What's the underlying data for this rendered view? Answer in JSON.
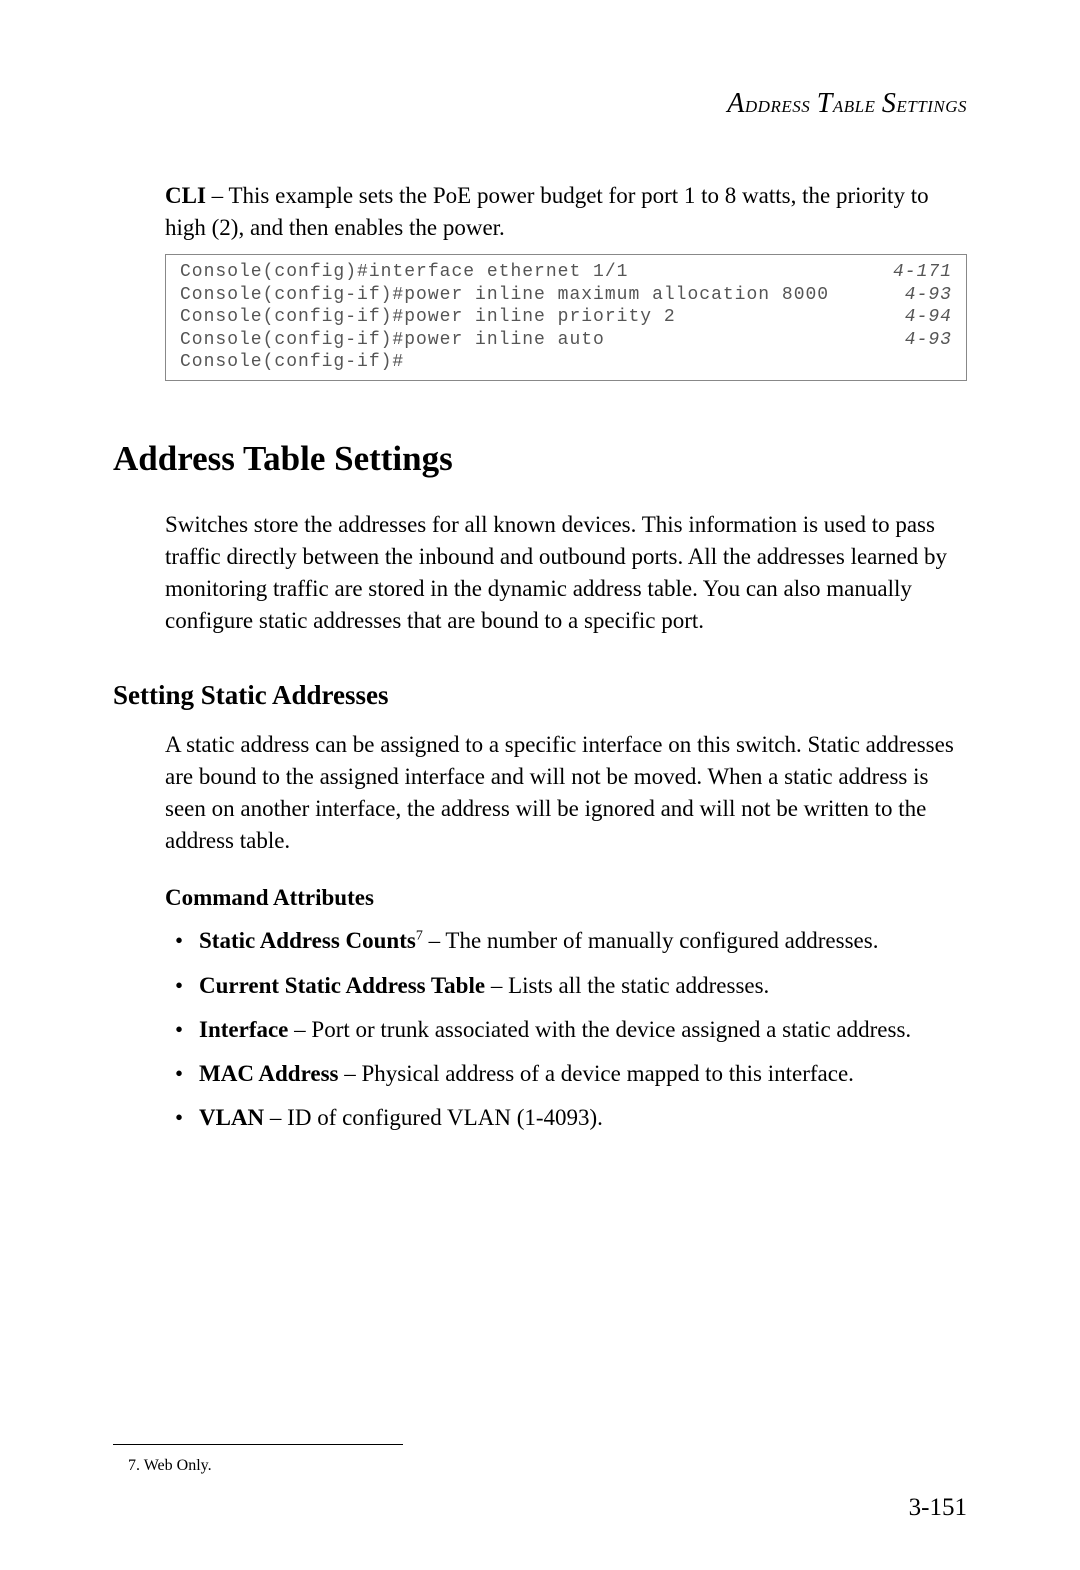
{
  "running_header": "Address Table Settings",
  "cli_intro_bold": "CLI",
  "cli_intro_text": " – This example sets the PoE power budget for port 1 to 8 watts, the priority to high (2), and then enables the power.",
  "code_lines": [
    {
      "cmd": "Console(config)#interface ethernet 1/1",
      "ref": "4-171"
    },
    {
      "cmd": "Console(config-if)#power inline maximum allocation 8000",
      "ref": "4-93"
    },
    {
      "cmd": "Console(config-if)#power inline priority 2",
      "ref": "4-94"
    },
    {
      "cmd": "Console(config-if)#power inline auto",
      "ref": "4-93"
    },
    {
      "cmd": "Console(config-if)#",
      "ref": ""
    }
  ],
  "section_heading": "Address Table Settings",
  "section_para": "Switches store the addresses for all known devices. This information is used to pass traffic directly between the inbound and outbound ports. All the addresses learned by monitoring traffic are stored in the dynamic address table. You can also manually configure static addresses that are bound to a specific port.",
  "subsection_heading": "Setting Static Addresses",
  "subsection_para": "A static address can be assigned to a specific interface on this switch. Static addresses are bound to the assigned interface and will not be moved. When a static address is seen on another interface, the address will be ignored and will not be written to the address table.",
  "subsub_heading": "Command Attributes",
  "bullets": [
    {
      "bold": "Static Address Counts",
      "sup": "7",
      "text": " – The number of manually configured addresses."
    },
    {
      "bold": "Current Static Address Table",
      "sup": "",
      "text": " – Lists all the static addresses."
    },
    {
      "bold": "Interface",
      "sup": "",
      "text": " – Port or trunk associated with the device assigned a static address."
    },
    {
      "bold": "MAC Address",
      "sup": "",
      "text": " – Physical address of a device mapped to this interface."
    },
    {
      "bold": "VLAN",
      "sup": "",
      "text": " – ID of configured VLAN (1-4093)."
    }
  ],
  "footnote_marker": "7.",
  "footnote_text": " Web Only.",
  "page_number": "3-151"
}
